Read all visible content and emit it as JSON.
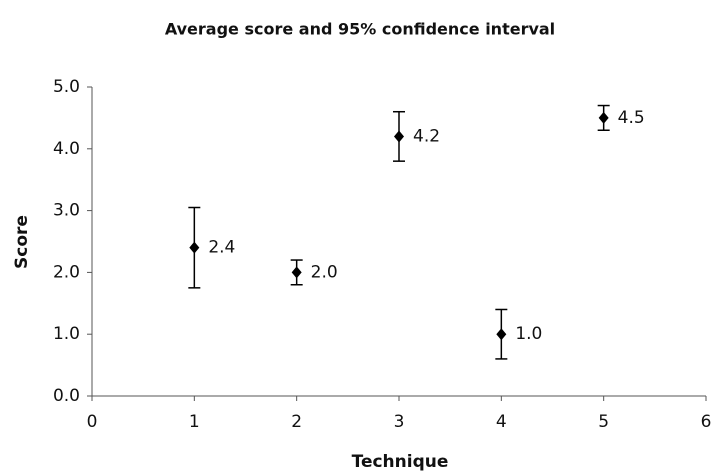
{
  "chart_data": {
    "type": "scatter",
    "title": "Average score and 95% confidence interval",
    "xlabel": "Technique",
    "ylabel": "Score",
    "x": [
      1,
      2,
      3,
      4,
      5
    ],
    "values": [
      2.4,
      2.0,
      4.2,
      1.0,
      4.5
    ],
    "value_labels": [
      "2.4",
      "2.0",
      "4.2",
      "1.0",
      "4.5"
    ],
    "errors": [
      0.65,
      0.2,
      0.4,
      0.4,
      0.2
    ],
    "color": "#000000",
    "xlim": [
      0,
      6
    ],
    "xticks": [
      0,
      1,
      2,
      3,
      4,
      5,
      6
    ],
    "ylim": [
      0,
      5
    ],
    "yticks": [
      {
        "value": 0,
        "label": "0.0"
      },
      {
        "value": 1,
        "label": "1.0"
      },
      {
        "value": 2,
        "label": "2.0"
      },
      {
        "value": 3,
        "label": "3.0"
      },
      {
        "value": 4,
        "label": "4.0"
      },
      {
        "value": 5,
        "label": "5.0"
      }
    ],
    "grid": false
  }
}
